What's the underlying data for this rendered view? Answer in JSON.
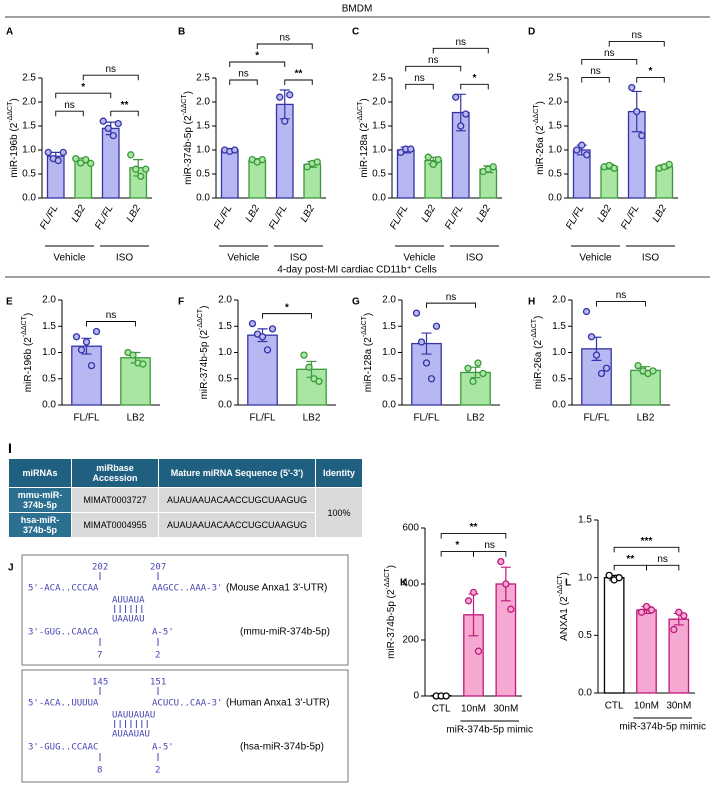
{
  "header": {
    "section1": "BMDM",
    "section2": "4-day post-MI cardiac CD11b⁺ Cells"
  },
  "chart_data": [
    {
      "type": "bar",
      "panel": "A",
      "ylabel": "miR-196b (2",
      "ylabel_exp": "-ΔΔCT",
      "ylabel_end": ")",
      "categories": [
        "FL/FL",
        "LB2",
        "FL/FL",
        "LB2"
      ],
      "rotate_labels": true,
      "values": [
        0.87,
        0.78,
        1.45,
        0.63
      ],
      "errors": [
        0.08,
        0.05,
        0.13,
        0.17
      ],
      "points": [
        [
          0.95,
          0.82,
          0.78,
          0.95
        ],
        [
          0.82,
          0.73,
          0.8,
          0.72
        ],
        [
          1.6,
          1.45,
          1.3,
          1.55
        ],
        [
          0.9,
          0.6,
          0.45,
          0.6
        ]
      ],
      "colors": [
        "#b7b7f2",
        "#a9e6a3",
        "#b7b7f2",
        "#a9e6a3"
      ],
      "edges": [
        "#3434a8",
        "#3a9a3a",
        "#3434a8",
        "#3a9a3a"
      ],
      "ylim": [
        0,
        2.5
      ],
      "yticks": [
        {
          "value": 0,
          "label": "0.0"
        },
        0.5,
        {
          "value": 1,
          "label": "1.0"
        },
        1.5,
        {
          "value": 2,
          "label": "2.0"
        },
        2.5
      ],
      "groups": [
        {
          "label": "Vehicle",
          "from": 0,
          "to": 1
        },
        {
          "label": "ISO",
          "from": 2,
          "to": 3
        }
      ],
      "annotations": [
        {
          "from": 0,
          "to": 1,
          "label": "ns"
        },
        {
          "from": 2,
          "to": 3,
          "label": "**"
        },
        {
          "from": 0,
          "to": 2,
          "label": "*"
        },
        {
          "from": 1,
          "to": 3,
          "label": "ns"
        }
      ]
    },
    {
      "type": "bar",
      "panel": "B",
      "ylabel": "miR-374b-5p (2",
      "ylabel_exp": "-ΔΔCT",
      "ylabel_end": ")",
      "categories": [
        "FL/FL",
        "LB2",
        "FL/FL",
        "LB2"
      ],
      "rotate_labels": true,
      "values": [
        1.0,
        0.78,
        1.95,
        0.7
      ],
      "errors": [
        0.03,
        0.04,
        0.3,
        0.06
      ],
      "points": [
        [
          1.0,
          0.97,
          1.0
        ],
        [
          0.8,
          0.75,
          0.8
        ],
        [
          2.1,
          1.6,
          2.15
        ],
        [
          0.65,
          0.72,
          0.75
        ]
      ],
      "colors": [
        "#b7b7f2",
        "#a9e6a3",
        "#b7b7f2",
        "#a9e6a3"
      ],
      "edges": [
        "#3434a8",
        "#3a9a3a",
        "#3434a8",
        "#3a9a3a"
      ],
      "ylim": [
        0,
        2.5
      ],
      "yticks": [
        {
          "value": 0,
          "label": "0.0"
        },
        0.5,
        {
          "value": 1,
          "label": "1.0"
        },
        1.5,
        {
          "value": 2,
          "label": "2.0"
        },
        2.5
      ],
      "groups": [
        {
          "label": "Vehicle",
          "from": 0,
          "to": 1
        },
        {
          "label": "ISO",
          "from": 2,
          "to": 3
        }
      ],
      "annotations": [
        {
          "from": 0,
          "to": 1,
          "label": "ns"
        },
        {
          "from": 2,
          "to": 3,
          "label": "**"
        },
        {
          "from": 0,
          "to": 2,
          "label": "*"
        },
        {
          "from": 1,
          "to": 3,
          "label": "ns"
        }
      ]
    },
    {
      "type": "bar",
      "panel": "C",
      "ylabel": "miR-128a (2",
      "ylabel_exp": "-ΔΔCT",
      "ylabel_end": ")",
      "categories": [
        "FL/FL",
        "LB2",
        "FL/FL",
        "LB2"
      ],
      "rotate_labels": true,
      "values": [
        1.0,
        0.78,
        1.78,
        0.6
      ],
      "errors": [
        0.06,
        0.07,
        0.38,
        0.07
      ],
      "points": [
        [
          0.95,
          1.02,
          1.02
        ],
        [
          0.85,
          0.7,
          0.8
        ],
        [
          2.1,
          1.5,
          1.75
        ],
        [
          0.55,
          0.6,
          0.65
        ]
      ],
      "colors": [
        "#b7b7f2",
        "#a9e6a3",
        "#b7b7f2",
        "#a9e6a3"
      ],
      "edges": [
        "#3434a8",
        "#3a9a3a",
        "#3434a8",
        "#3a9a3a"
      ],
      "ylim": [
        0,
        2.5
      ],
      "yticks": [
        {
          "value": 0,
          "label": "0.0"
        },
        0.5,
        {
          "value": 1,
          "label": "1.0"
        },
        1.5,
        {
          "value": 2,
          "label": "2.0"
        },
        2.5
      ],
      "groups": [
        {
          "label": "Vehicle",
          "from": 0,
          "to": 1
        },
        {
          "label": "ISO",
          "from": 2,
          "to": 3
        }
      ],
      "annotations": [
        {
          "from": 0,
          "to": 1,
          "label": "ns"
        },
        {
          "from": 2,
          "to": 3,
          "label": "*"
        },
        {
          "from": 0,
          "to": 2,
          "label": "ns"
        },
        {
          "from": 1,
          "to": 3,
          "label": "ns"
        }
      ]
    },
    {
      "type": "bar",
      "panel": "D",
      "ylabel": "miR-26a (2",
      "ylabel_exp": "-ΔΔCT",
      "ylabel_end": ")",
      "categories": [
        "FL/FL",
        "LB2",
        "FL/FL",
        "LB2"
      ],
      "rotate_labels": true,
      "values": [
        1.0,
        0.65,
        1.8,
        0.65
      ],
      "errors": [
        0.1,
        0.05,
        0.42,
        0.04
      ],
      "points": [
        [
          1.0,
          1.1,
          0.9
        ],
        [
          0.65,
          0.68,
          0.62
        ],
        [
          2.3,
          1.8,
          1.3
        ],
        [
          0.62,
          0.65,
          0.7
        ]
      ],
      "colors": [
        "#b7b7f2",
        "#a9e6a3",
        "#b7b7f2",
        "#a9e6a3"
      ],
      "edges": [
        "#3434a8",
        "#3a9a3a",
        "#3434a8",
        "#3a9a3a"
      ],
      "ylim": [
        0,
        2.5
      ],
      "yticks": [
        {
          "value": 0,
          "label": "0.0"
        },
        0.5,
        {
          "value": 1,
          "label": "1.0"
        },
        1.5,
        {
          "value": 2,
          "label": "2.0"
        },
        2.5
      ],
      "groups": [
        {
          "label": "Vehicle",
          "from": 0,
          "to": 1
        },
        {
          "label": "ISO",
          "from": 2,
          "to": 3
        }
      ],
      "annotations": [
        {
          "from": 0,
          "to": 1,
          "label": "ns"
        },
        {
          "from": 2,
          "to": 3,
          "label": "*"
        },
        {
          "from": 0,
          "to": 2,
          "label": "ns"
        },
        {
          "from": 1,
          "to": 3,
          "label": "ns"
        }
      ]
    },
    {
      "type": "bar",
      "panel": "E",
      "ylabel": "miR-196b (2",
      "ylabel_exp": "-ΔΔCT",
      "ylabel_end": ")",
      "categories": [
        "FL/FL",
        "LB2"
      ],
      "values": [
        1.12,
        0.9
      ],
      "errors": [
        0.15,
        0.1
      ],
      "points": [
        [
          1.3,
          1.05,
          1.2,
          0.75,
          1.4
        ],
        [
          1.0,
          0.95,
          0.8,
          0.78
        ]
      ],
      "colors": [
        "#b7b7f2",
        "#a9e6a3"
      ],
      "edges": [
        "#3434a8",
        "#3a9a3a"
      ],
      "ylim": [
        0,
        2
      ],
      "yticks": [
        {
          "value": 0,
          "label": "0.0"
        },
        0.5,
        {
          "value": 1,
          "label": "1.0"
        },
        1.5,
        {
          "value": 2,
          "label": "2.0"
        }
      ],
      "annotations": [
        {
          "from": 0,
          "to": 1,
          "label": "ns"
        }
      ]
    },
    {
      "type": "bar",
      "panel": "F",
      "ylabel": "miR-374b-5p (2",
      "ylabel_exp": "-ΔΔCT",
      "ylabel_end": ")",
      "categories": [
        "FL/FL",
        "LB2"
      ],
      "values": [
        1.33,
        0.68
      ],
      "errors": [
        0.12,
        0.15
      ],
      "points": [
        [
          1.55,
          1.35,
          1.3,
          1.05,
          1.45
        ],
        [
          0.95,
          0.72,
          0.5,
          0.45
        ]
      ],
      "colors": [
        "#b7b7f2",
        "#a9e6a3"
      ],
      "edges": [
        "#3434a8",
        "#3a9a3a"
      ],
      "ylim": [
        0,
        2
      ],
      "yticks": [
        {
          "value": 0,
          "label": "0.0"
        },
        0.5,
        {
          "value": 1,
          "label": "1.0"
        },
        1.5,
        {
          "value": 2,
          "label": "2.0"
        }
      ],
      "annotations": [
        {
          "from": 0,
          "to": 1,
          "label": "*"
        }
      ]
    },
    {
      "type": "bar",
      "panel": "G",
      "ylabel": "miR-128a (2",
      "ylabel_exp": "-ΔΔCT",
      "ylabel_end": ")",
      "categories": [
        "FL/FL",
        "LB2"
      ],
      "values": [
        1.17,
        0.62
      ],
      "errors": [
        0.2,
        0.1
      ],
      "points": [
        [
          1.75,
          1.2,
          0.8,
          0.5,
          1.5
        ],
        [
          0.7,
          0.45,
          0.8,
          0.6
        ]
      ],
      "colors": [
        "#b7b7f2",
        "#a9e6a3"
      ],
      "edges": [
        "#3434a8",
        "#3a9a3a"
      ],
      "ylim": [
        0,
        2
      ],
      "yticks": [
        {
          "value": 0,
          "label": "0.0"
        },
        0.5,
        {
          "value": 1,
          "label": "1.0"
        },
        1.5,
        {
          "value": 2,
          "label": "2.0"
        }
      ],
      "annotations": [
        {
          "from": 0,
          "to": 1,
          "label": "ns"
        }
      ]
    },
    {
      "type": "bar",
      "panel": "H",
      "ylabel": "miR-26a (2",
      "ylabel_exp": "-ΔΔCT",
      "ylabel_end": ")",
      "categories": [
        "FL/FL",
        "LB2"
      ],
      "values": [
        1.07,
        0.66
      ],
      "errors": [
        0.22,
        0.07
      ],
      "points": [
        [
          1.78,
          1.3,
          0.95,
          0.6,
          0.7
        ],
        [
          0.75,
          0.65,
          0.6,
          0.65
        ]
      ],
      "colors": [
        "#b7b7f2",
        "#a9e6a3"
      ],
      "edges": [
        "#3434a8",
        "#3a9a3a"
      ],
      "ylim": [
        0,
        2
      ],
      "yticks": [
        {
          "value": 0,
          "label": "0.0"
        },
        0.5,
        {
          "value": 1,
          "label": "1.0"
        },
        1.5,
        {
          "value": 2,
          "label": "2.0"
        }
      ],
      "annotations": [
        {
          "from": 0,
          "to": 1,
          "label": "ns"
        }
      ]
    },
    {
      "type": "bar",
      "panel": "K",
      "ylabel": "miR-374b-5p (2",
      "ylabel_exp": "-ΔΔCT",
      "ylabel_end": ")",
      "categories": [
        "CTL",
        "10nM",
        "30nM"
      ],
      "values": [
        1,
        290,
        400
      ],
      "errors": [
        0.5,
        75,
        60
      ],
      "points": [
        [
          0,
          0,
          0
        ],
        [
          340,
          370,
          160
        ],
        [
          480,
          400,
          310
        ]
      ],
      "colors": [
        "#ffffff",
        "#f5a8d0",
        "#f5a8d0"
      ],
      "edges": [
        "#000000",
        "#c0187c",
        "#c0187c"
      ],
      "ylim": [
        0,
        600
      ],
      "yticks": [
        0,
        200,
        400,
        600
      ],
      "groups": [
        {
          "label": "miR-374b-5p mimic",
          "from": 1,
          "to": 2
        }
      ],
      "annotations": [
        {
          "from": 0,
          "to": 1,
          "label": "*"
        },
        {
          "from": 1,
          "to": 2,
          "label": "ns"
        },
        {
          "from": 0,
          "to": 2,
          "label": "**"
        }
      ]
    },
    {
      "type": "bar",
      "panel": "L",
      "ylabel": "ANXA1 (2",
      "ylabel_exp": "-ΔΔCT",
      "ylabel_end": ")",
      "categories": [
        "CTL",
        "10nM",
        "30nM"
      ],
      "values": [
        1.0,
        0.72,
        0.64
      ],
      "errors": [
        0.02,
        0.03,
        0.05
      ],
      "points": [
        [
          1.02,
          0.98,
          1.0
        ],
        [
          0.7,
          0.75,
          0.72
        ],
        [
          0.55,
          0.7,
          0.67
        ]
      ],
      "colors": [
        "#ffffff",
        "#f5a8d0",
        "#f5a8d0"
      ],
      "edges": [
        "#000000",
        "#c0187c",
        "#c0187c"
      ],
      "ylim": [
        0,
        1.5
      ],
      "yticks": [
        {
          "value": 0,
          "label": "0.0"
        },
        0.5,
        {
          "value": 1,
          "label": "1.0"
        },
        1.5
      ],
      "groups": [
        {
          "label": "miR-374b-5p mimic",
          "from": 1,
          "to": 2
        }
      ],
      "annotations": [
        {
          "from": 0,
          "to": 1,
          "label": "**"
        },
        {
          "from": 1,
          "to": 2,
          "label": "ns"
        },
        {
          "from": 0,
          "to": 2,
          "label": "***"
        }
      ]
    }
  ],
  "table": {
    "panel": "I",
    "headers": [
      "miRNAs",
      "miRbase Accession",
      "Mature miRNA Sequence (5'-3')",
      "Identity"
    ],
    "rows": [
      [
        "mmu-miR-374b-5p",
        "MIMAT0003727",
        "AUAUAAUACAACCUGCUAAGUG"
      ],
      [
        "hsa-miR-374b-5p",
        "MIMAT0004955",
        "AUAUAAUACAACCUGCUAAGUG"
      ]
    ],
    "identity": "100%"
  },
  "diagram": {
    "panel": "J",
    "boxes": [
      {
        "top_numbers": [
          "202",
          "207"
        ],
        "top_strand": "5'-ACA..CCCAA",
        "top_strand_right": "AAGCC..AAA-3'",
        "top_label": "(Mouse Anxa1 3'-UTR)",
        "pair_top": "AUUAUA",
        "pair_bottom": "UAAUAU",
        "bottom_strand": "3'-GUG..CAACA",
        "bottom_strand_right": "A-5'",
        "bottom_label": "(mmu-miR-374b-5p)",
        "bottom_numbers": [
          "7",
          "2"
        ]
      },
      {
        "top_numbers": [
          "145",
          "151"
        ],
        "top_strand": "5'-ACA..UUUUA",
        "top_strand_right": "ACUCU..CAA-3'",
        "top_label": "(Human Anxa1 3'-UTR)",
        "pair_top": "UAUUAUAU",
        "pair_bottom": "AUAAUAU",
        "bottom_strand": "3'-GUG..CCAAC",
        "bottom_strand_right": "A-5'",
        "bottom_label": "(hsa-miR-374b-5p)",
        "bottom_numbers": [
          "8",
          "2"
        ]
      }
    ]
  }
}
